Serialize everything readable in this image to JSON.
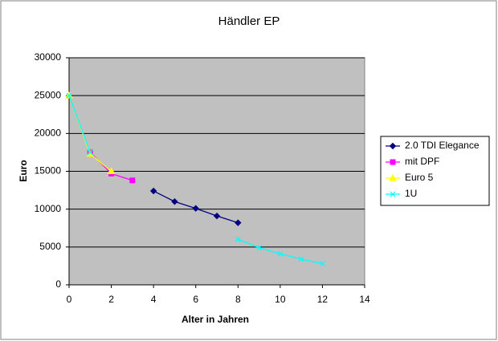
{
  "chart_data": {
    "type": "line",
    "title": "Händler EP",
    "x_label": "Alter in Jahren",
    "y_label": "Euro",
    "x": [
      0,
      1,
      2,
      3,
      4,
      5,
      6,
      7,
      8,
      9,
      10,
      11,
      12
    ],
    "series": [
      {
        "name": "2.0 TDI Elegance",
        "color": "#000080",
        "marker": "diamond",
        "values": [
          null,
          null,
          null,
          null,
          12400,
          11000,
          10100,
          9100,
          8200,
          null,
          null,
          null,
          null
        ]
      },
      {
        "name": "mit DPF",
        "color": "#ff00ff",
        "marker": "square",
        "values": [
          null,
          17500,
          14700,
          13800,
          null,
          null,
          null,
          null,
          null,
          null,
          null,
          null,
          null
        ]
      },
      {
        "name": "Euro 5",
        "color": "#ffff00",
        "marker": "triangle",
        "values": [
          25000,
          17300,
          15000,
          null,
          null,
          null,
          null,
          null,
          null,
          null,
          null,
          null,
          null
        ]
      },
      {
        "name": "1U",
        "color": "#00ffff",
        "marker": "x",
        "values": [
          25000,
          17500,
          null,
          null,
          null,
          null,
          null,
          null,
          6000,
          4900,
          4100,
          3400,
          2800
        ]
      }
    ],
    "xlim": [
      0,
      14
    ],
    "xticks": [
      0,
      2,
      4,
      6,
      8,
      10,
      12,
      14
    ],
    "ylim": [
      0,
      30000
    ],
    "yticks": [
      0,
      5000,
      10000,
      15000,
      20000,
      25000,
      30000
    ],
    "grid": true,
    "plot_background": "#c0c0c0",
    "legend": "right"
  }
}
